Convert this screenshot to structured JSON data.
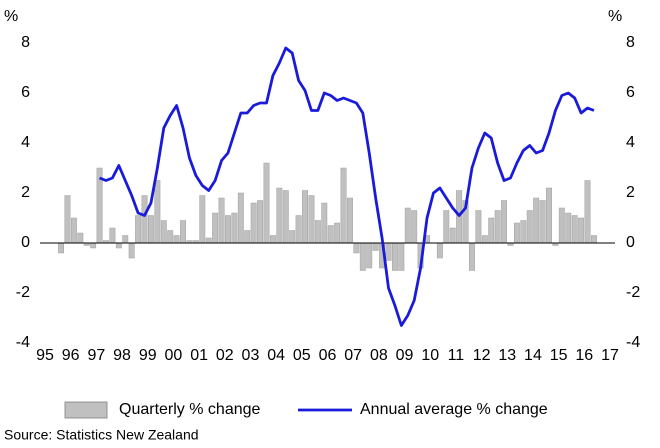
{
  "chart_data": {
    "type": "bar_line",
    "y_label": "%",
    "y2_label": "%",
    "x": [
      1995.625,
      1995.875,
      1996.125,
      1996.375,
      1996.625,
      1996.875,
      1997.125,
      1997.375,
      1997.625,
      1997.875,
      1998.125,
      1998.375,
      1998.625,
      1998.875,
      1999.125,
      1999.375,
      1999.625,
      1999.875,
      2000.125,
      2000.375,
      2000.625,
      2000.875,
      2001.125,
      2001.375,
      2001.625,
      2001.875,
      2002.125,
      2002.375,
      2002.625,
      2002.875,
      2003.125,
      2003.375,
      2003.625,
      2003.875,
      2004.125,
      2004.375,
      2004.625,
      2004.875,
      2005.125,
      2005.375,
      2005.625,
      2005.875,
      2006.125,
      2006.375,
      2006.625,
      2006.875,
      2007.125,
      2007.375,
      2007.625,
      2007.875,
      2008.125,
      2008.375,
      2008.625,
      2008.875,
      2009.125,
      2009.375,
      2009.625,
      2009.875,
      2010.125,
      2010.375,
      2010.625,
      2010.875,
      2011.125,
      2011.375,
      2011.625,
      2011.875,
      2012.125,
      2012.375,
      2012.625,
      2012.875,
      2013.125,
      2013.375,
      2013.625,
      2013.875,
      2014.125,
      2014.375,
      2014.625,
      2014.875,
      2015.125,
      2015.375,
      2015.625,
      2015.875,
      2016.125,
      2016.375
    ],
    "series": [
      {
        "name": "Quarterly % change",
        "type": "bar",
        "color": "#c0c0c0",
        "values": [
          -0.4,
          1.9,
          1.0,
          0.4,
          -0.1,
          -0.2,
          3.0,
          0.1,
          0.6,
          -0.2,
          0.3,
          -0.6,
          1.1,
          1.9,
          1.1,
          2.5,
          0.9,
          0.5,
          0.3,
          0.9,
          0.1,
          0.1,
          1.9,
          0.2,
          1.2,
          1.8,
          1.1,
          1.2,
          2.0,
          0.5,
          1.6,
          1.7,
          3.2,
          0.3,
          2.2,
          2.1,
          0.5,
          1.1,
          2.1,
          1.9,
          0.9,
          1.6,
          0.7,
          0.8,
          3.0,
          1.8,
          -0.4,
          -1.1,
          -1.0,
          -0.3,
          -1.0,
          -0.7,
          -1.1,
          -1.1,
          1.4,
          1.3,
          -1.0,
          0.3,
          0.0,
          -0.6,
          1.3,
          0.6,
          2.1,
          1.7,
          -1.1,
          1.3,
          0.3,
          1.0,
          1.3,
          1.7,
          -0.1,
          0.8,
          0.9,
          1.3,
          1.8,
          1.7,
          2.2,
          -0.1,
          1.4,
          1.2,
          1.1,
          1.0,
          2.5,
          0.3
        ]
      },
      {
        "name": "Annual average % change",
        "type": "line",
        "color": "#1a1adb",
        "values": [
          null,
          null,
          null,
          null,
          null,
          null,
          2.6,
          2.5,
          2.6,
          3.1,
          2.5,
          1.9,
          1.2,
          1.1,
          1.6,
          3.0,
          4.6,
          5.1,
          5.5,
          4.6,
          3.4,
          2.7,
          2.3,
          2.1,
          2.5,
          3.3,
          3.6,
          4.4,
          5.2,
          5.2,
          5.5,
          5.6,
          5.6,
          6.7,
          7.2,
          7.8,
          7.6,
          6.5,
          6.1,
          5.3,
          5.3,
          6.0,
          5.9,
          5.7,
          5.8,
          5.7,
          5.6,
          5.2,
          3.6,
          1.8,
          0.2,
          -1.8,
          -2.5,
          -3.3,
          -2.9,
          -2.3,
          -1.0,
          1.0,
          2.0,
          2.2,
          1.8,
          1.4,
          1.1,
          1.4,
          3.0,
          3.8,
          4.4,
          4.2,
          3.2,
          2.5,
          2.6,
          3.2,
          3.7,
          3.9,
          3.6,
          3.7,
          4.4,
          5.3,
          5.9,
          6.0,
          5.8,
          5.2,
          5.4,
          5.3
        ]
      }
    ],
    "xlim": [
      1995,
      2017
    ],
    "xticks": [
      {
        "value": 1995,
        "label": "95"
      },
      {
        "value": 1996,
        "label": "96"
      },
      {
        "value": 1997,
        "label": "97"
      },
      {
        "value": 1998,
        "label": "98"
      },
      {
        "value": 1999,
        "label": "99"
      },
      {
        "value": 2000,
        "label": "00"
      },
      {
        "value": 2001,
        "label": "01"
      },
      {
        "value": 2002,
        "label": "02"
      },
      {
        "value": 2003,
        "label": "03"
      },
      {
        "value": 2004,
        "label": "04"
      },
      {
        "value": 2005,
        "label": "05"
      },
      {
        "value": 2006,
        "label": "06"
      },
      {
        "value": 2007,
        "label": "07"
      },
      {
        "value": 2008,
        "label": "08"
      },
      {
        "value": 2009,
        "label": "09"
      },
      {
        "value": 2010,
        "label": "10"
      },
      {
        "value": 2011,
        "label": "11"
      },
      {
        "value": 2012,
        "label": "12"
      },
      {
        "value": 2013,
        "label": "13"
      },
      {
        "value": 2014,
        "label": "14"
      },
      {
        "value": 2015,
        "label": "15"
      },
      {
        "value": 2016,
        "label": "16"
      },
      {
        "value": 2017,
        "label": "17"
      }
    ],
    "ylim": [
      -4,
      8
    ],
    "yticks": [
      8,
      6,
      4,
      2,
      0,
      -2,
      -4
    ],
    "y2lim": [
      -4,
      8
    ],
    "y2ticks": [
      8,
      6,
      4,
      2,
      0,
      -2,
      -4
    ],
    "source": "Source: Statistics New Zealand"
  }
}
